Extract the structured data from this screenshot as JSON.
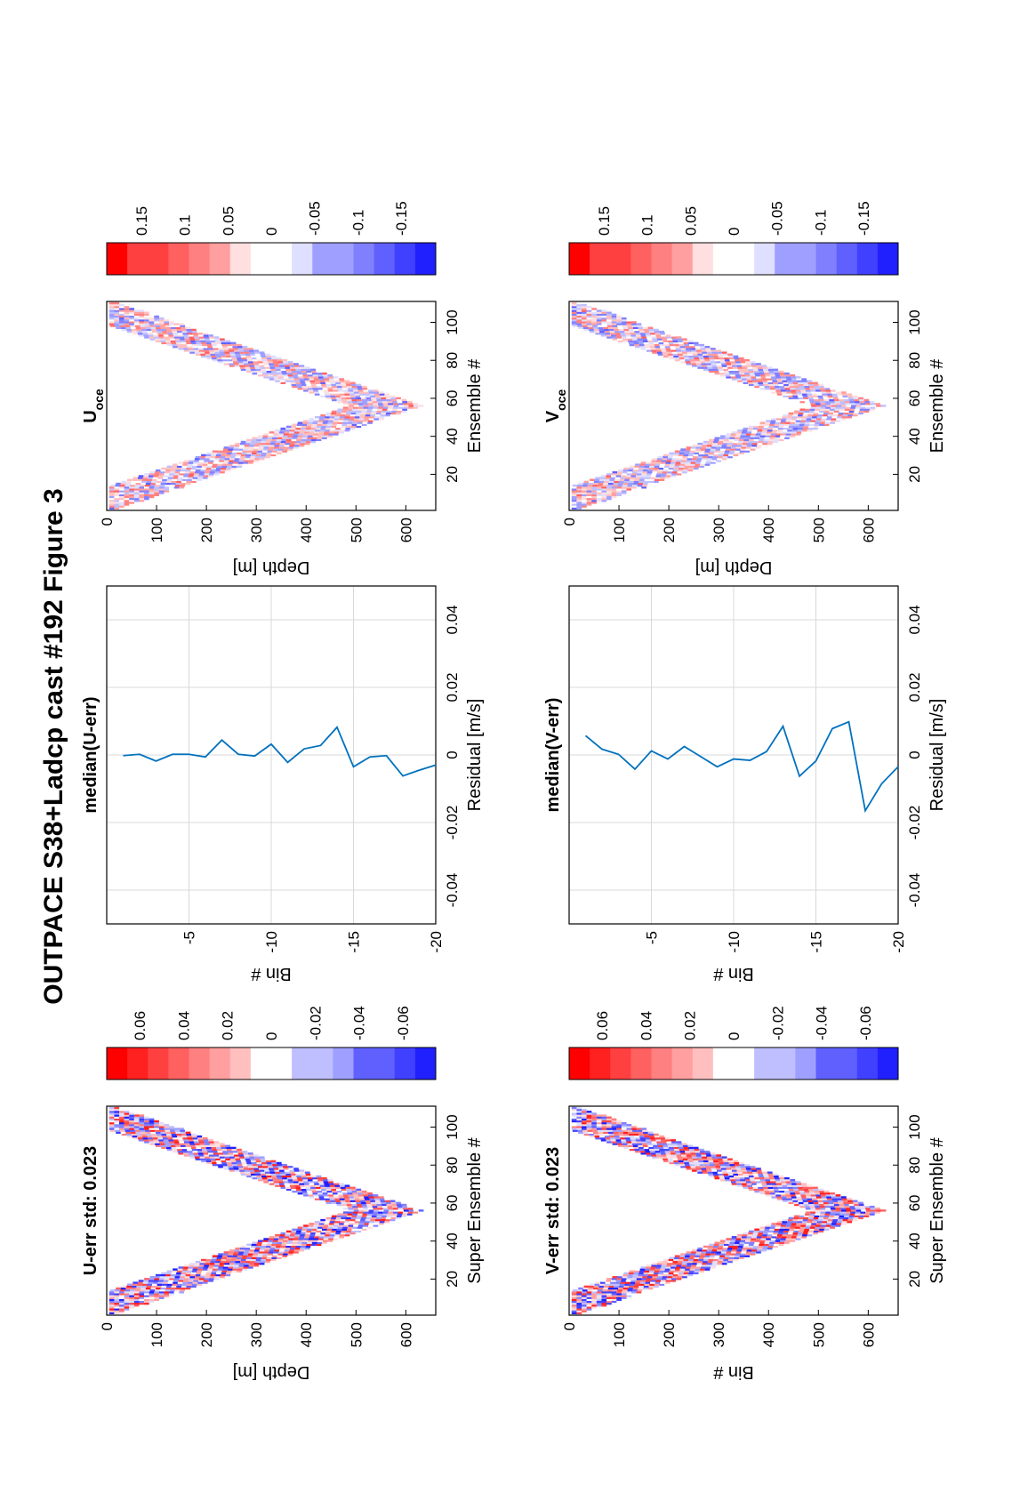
{
  "figure_title": "OUTPACE S38+Ladcp cast #192  Figure 3",
  "colors": {
    "neg": "#0000ff",
    "pos": "#ff0000",
    "line": "#0072bd",
    "grid": "#d9d9d9"
  },
  "chart_data": [
    {
      "id": "u_err",
      "type": "heatmap",
      "title": "U-err std: 0.023",
      "xlabel": "Super Ensemble #",
      "ylabel": "Depth [m]",
      "xlim": [
        1,
        111
      ],
      "ylim": [
        0,
        660
      ],
      "xticks": [
        20,
        40,
        60,
        80,
        100
      ],
      "yticks": [
        0,
        100,
        200,
        300,
        400,
        500,
        600
      ],
      "colorbar": {
        "clim": [
          -0.075,
          0.075
        ],
        "ticks": [
          0.06,
          0.04,
          0.02,
          0,
          -0.02,
          -0.04,
          -0.06
        ],
        "tick_labels": [
          "0.06",
          "0.04",
          "0.02",
          "0",
          "-0.02",
          "-0.04",
          "-0.06"
        ]
      }
    },
    {
      "id": "u_med",
      "type": "line",
      "title": "median(U-err)",
      "xlabel": "Residual [m/s]",
      "ylabel": "Bin #",
      "xlim": [
        -0.05,
        0.05
      ],
      "ylim": [
        -20,
        0
      ],
      "xticks": [
        -0.04,
        -0.02,
        0,
        0.02,
        0.04
      ],
      "xtick_labels": [
        "-0.04",
        "-0.02",
        "0",
        "0.02",
        "0.04"
      ],
      "yticks": [
        -5,
        -10,
        -15,
        -20
      ],
      "series": [
        {
          "y": [
            -1,
            -2,
            -3,
            -4,
            -5,
            -6,
            -7,
            -8,
            -9,
            -10,
            -11,
            -12,
            -13,
            -14,
            -15,
            -16,
            -17,
            -18,
            -19,
            -20
          ],
          "x": [
            -0.0002,
            0.0002,
            -0.0018,
            0.0002,
            0.0002,
            -0.0006,
            0.0044,
            0.0002,
            -0.0003,
            0.0032,
            -0.0022,
            0.0018,
            0.0028,
            0.0082,
            -0.0035,
            -0.0006,
            -0.0002,
            -0.0062,
            -0.0045,
            -0.003
          ]
        }
      ]
    },
    {
      "id": "u_oce",
      "type": "heatmap",
      "title": "U",
      "title_sub": "oce",
      "xlabel": "Ensemble #",
      "ylabel": "Depth [m]",
      "xlim": [
        1,
        111
      ],
      "ylim": [
        0,
        660
      ],
      "xticks": [
        20,
        40,
        60,
        80,
        100
      ],
      "yticks": [
        0,
        100,
        200,
        300,
        400,
        500,
        600
      ],
      "colorbar": {
        "clim": [
          -0.19,
          0.19
        ],
        "ticks": [
          0.15,
          0.1,
          0.05,
          0,
          -0.05,
          -0.1,
          -0.15
        ],
        "tick_labels": [
          "0.15",
          "0.1",
          "0.05",
          "0",
          "-0.05",
          "-0.1",
          "-0.15"
        ]
      }
    },
    {
      "id": "v_err",
      "type": "heatmap",
      "title": "V-err std: 0.023",
      "xlabel": "Super Ensemble #",
      "ylabel": "Bin #",
      "xlim": [
        1,
        111
      ],
      "ylim": [
        0,
        660
      ],
      "xticks": [
        20,
        40,
        60,
        80,
        100
      ],
      "yticks": [
        0,
        100,
        200,
        300,
        400,
        500,
        600
      ],
      "colorbar": {
        "clim": [
          -0.075,
          0.075
        ],
        "ticks": [
          0.06,
          0.04,
          0.02,
          0,
          -0.02,
          -0.04,
          -0.06
        ],
        "tick_labels": [
          "0.06",
          "0.04",
          "0.02",
          "0",
          "-0.02",
          "-0.04",
          "-0.06"
        ]
      }
    },
    {
      "id": "v_med",
      "type": "line",
      "title": "median(V-err)",
      "xlabel": "Residual [m/s]",
      "ylabel": "Bin #",
      "xlim": [
        -0.05,
        0.05
      ],
      "ylim": [
        -20,
        0
      ],
      "xticks": [
        -0.04,
        -0.02,
        0,
        0.02,
        0.04
      ],
      "xtick_labels": [
        "-0.04",
        "-0.02",
        "0",
        "0.02",
        "0.04"
      ],
      "yticks": [
        -5,
        -10,
        -15,
        -20
      ],
      "series": [
        {
          "y": [
            -1,
            -2,
            -3,
            -4,
            -5,
            -6,
            -7,
            -8,
            -9,
            -10,
            -11,
            -12,
            -13,
            -14,
            -15,
            -16,
            -17,
            -18,
            -19,
            -20
          ],
          "x": [
            0.0057,
            0.0017,
            0.0002,
            -0.0042,
            0.0012,
            -0.0012,
            0.0025,
            -0.0005,
            -0.0035,
            -0.0012,
            -0.0016,
            0.001,
            0.0085,
            -0.0063,
            -0.0018,
            0.0078,
            0.0098,
            -0.0165,
            -0.0085,
            -0.0035
          ]
        }
      ]
    },
    {
      "id": "v_oce",
      "type": "heatmap",
      "title": "V",
      "title_sub": "oce",
      "xlabel": "Ensemble #",
      "ylabel": "Depth [m]",
      "xlim": [
        1,
        111
      ],
      "ylim": [
        0,
        660
      ],
      "xticks": [
        20,
        40,
        60,
        80,
        100
      ],
      "yticks": [
        0,
        100,
        200,
        300,
        400,
        500,
        600
      ],
      "colorbar": {
        "clim": [
          -0.19,
          0.19
        ],
        "ticks": [
          0.15,
          0.1,
          0.05,
          0,
          -0.05,
          -0.1,
          -0.15
        ],
        "tick_labels": [
          "0.15",
          "0.1",
          "0.05",
          "0",
          "-0.05",
          "-0.1",
          "-0.15"
        ]
      }
    }
  ]
}
